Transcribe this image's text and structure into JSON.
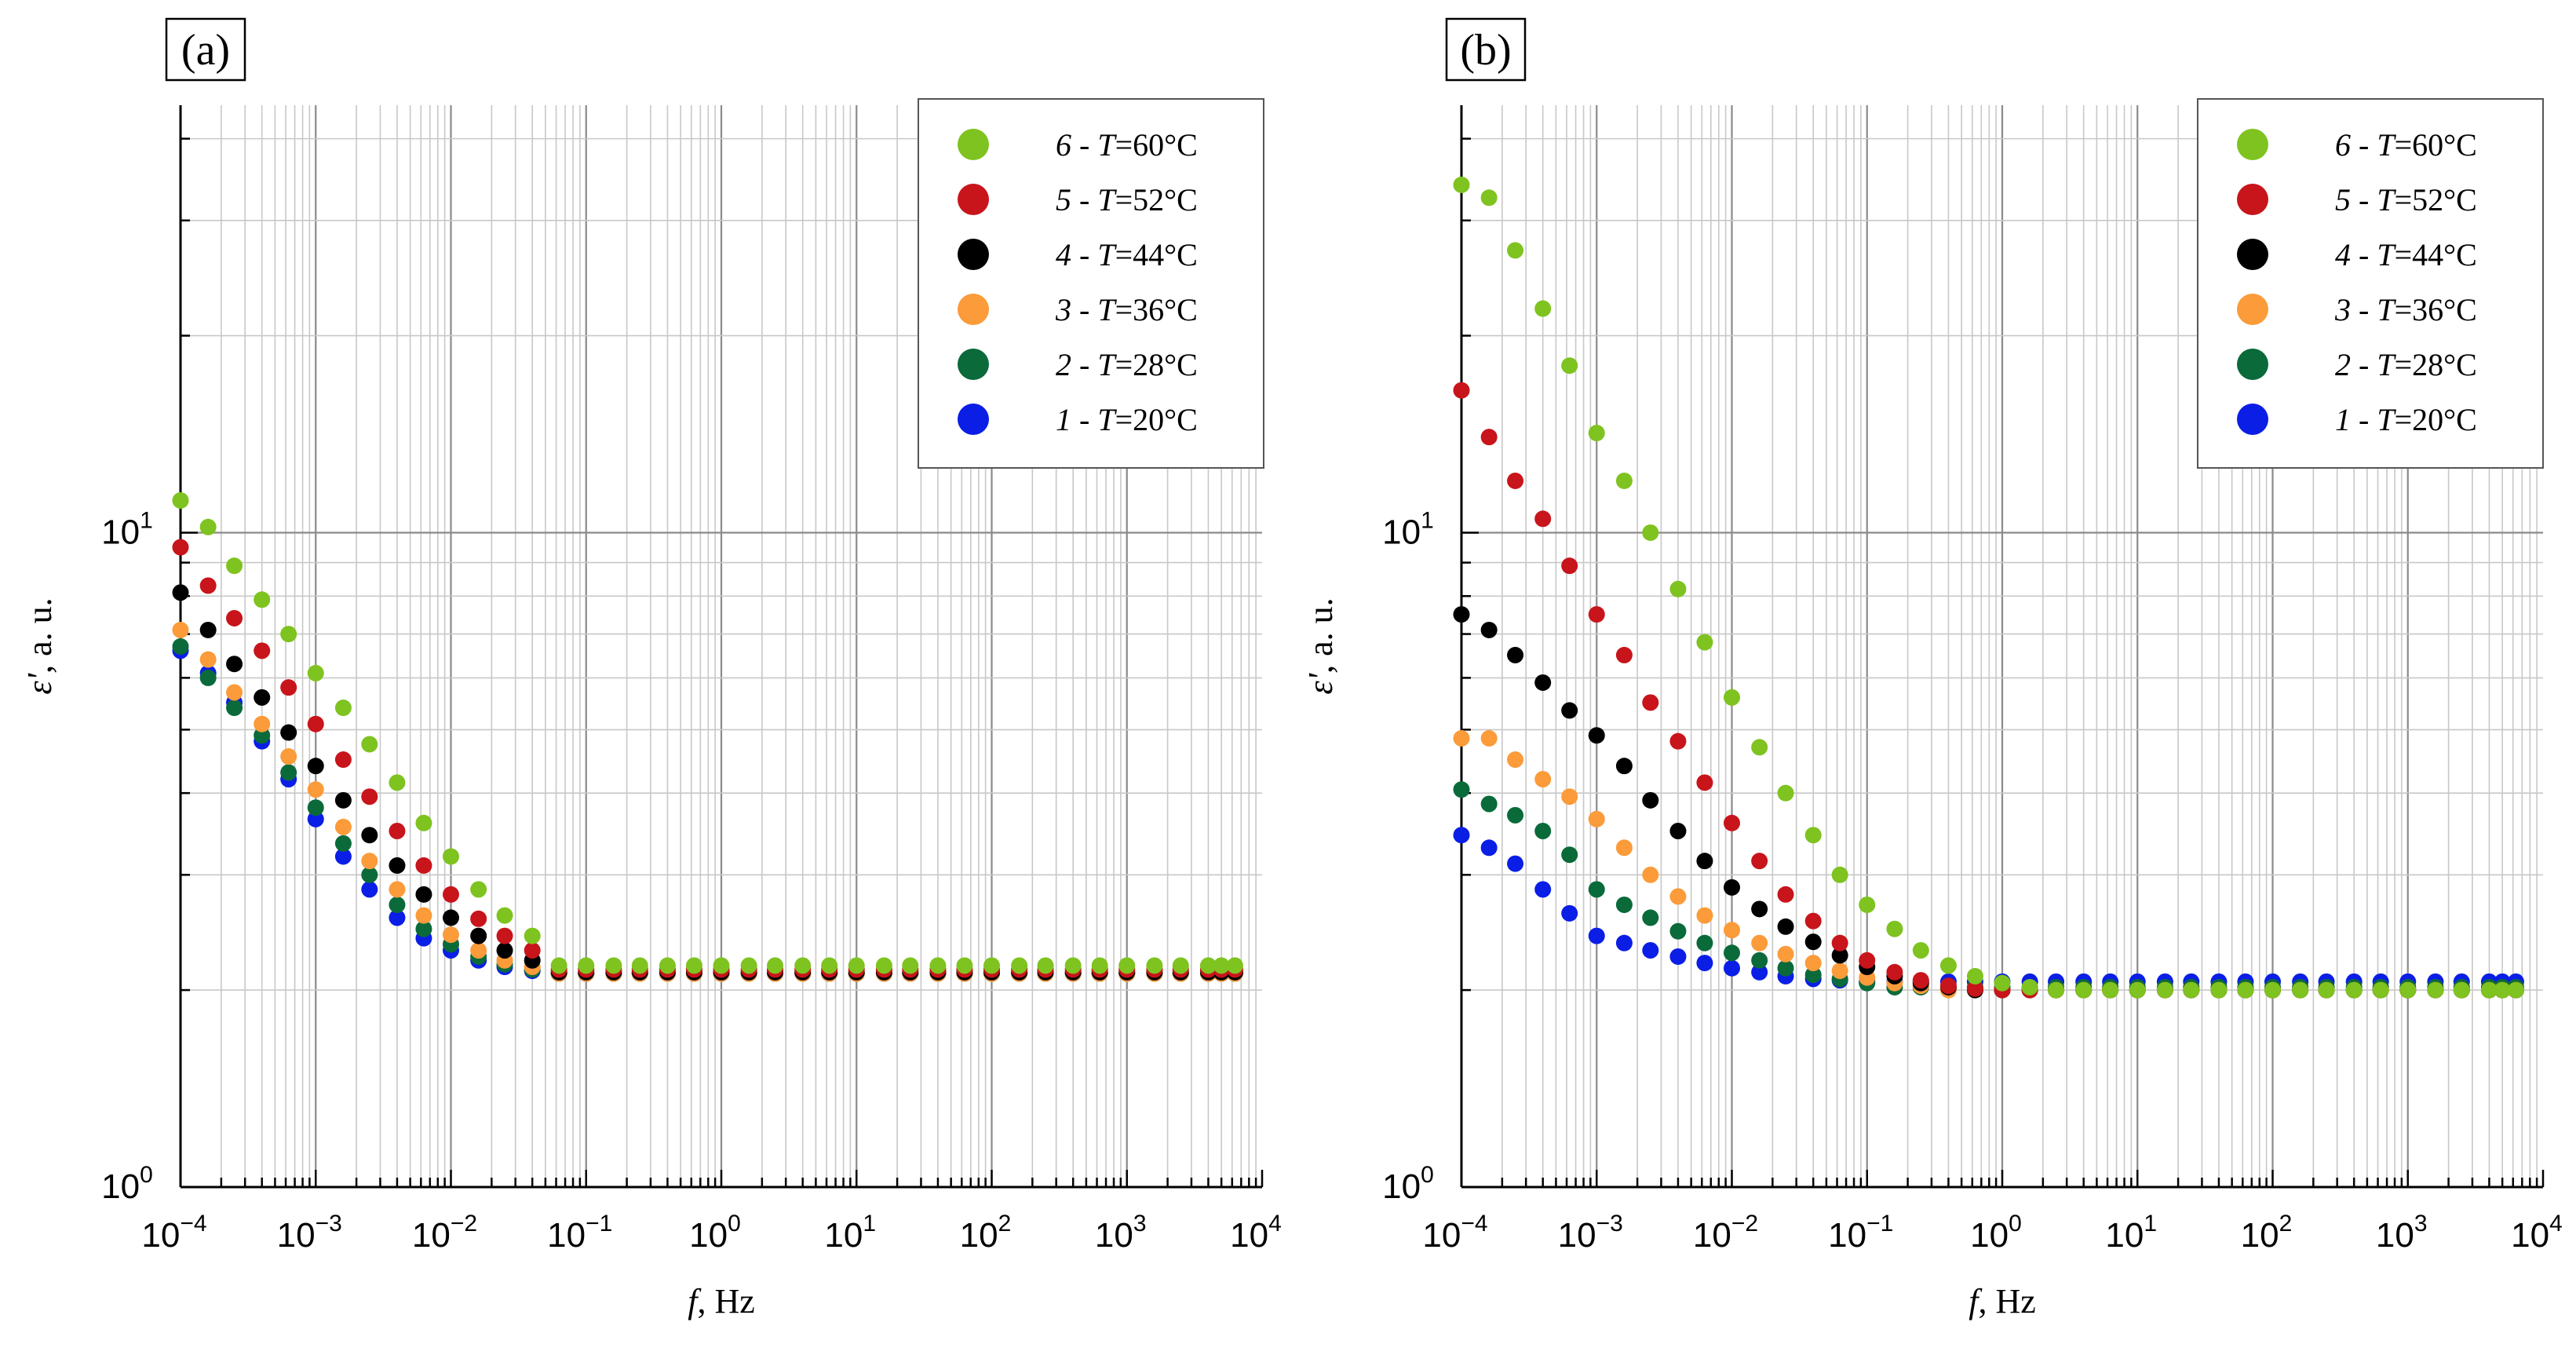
{
  "chart_data": [
    {
      "type": "scatter",
      "panel_label": "(a)",
      "xlabel_var": "f",
      "xlabel_unit": ", Hz",
      "ylabel_var": "ε'",
      "ylabel_unit": ", a. u.",
      "xscale": "log",
      "yscale": "log",
      "xlim": [
        0.0001,
        10000
      ],
      "ylim": [
        1,
        45
      ],
      "x_ticks": [
        {
          "base": "10",
          "exp": "−4"
        },
        {
          "base": "10",
          "exp": "−3"
        },
        {
          "base": "10",
          "exp": "−2"
        },
        {
          "base": "10",
          "exp": "−1"
        },
        {
          "base": "10",
          "exp": "0"
        },
        {
          "base": "10",
          "exp": "1"
        },
        {
          "base": "10",
          "exp": "2"
        },
        {
          "base": "10",
          "exp": "3"
        },
        {
          "base": "10",
          "exp": "4"
        }
      ],
      "y_ticks": [
        {
          "base": "10",
          "exp": "0"
        },
        {
          "base": "10",
          "exp": "1"
        }
      ],
      "grid": true,
      "legend_position": "top-right",
      "legend": [
        {
          "num": "6",
          "sep": " - ",
          "var": "T",
          "val": "=60°C",
          "color": "#7ec31f"
        },
        {
          "num": "5",
          "sep": " - ",
          "var": "T",
          "val": "=52°C",
          "color": "#c8141b"
        },
        {
          "num": "4",
          "sep": " - ",
          "var": "T",
          "val": "=44°C",
          "color": "#000000"
        },
        {
          "num": "3",
          "sep": " - ",
          "var": "T",
          "val": "=36°C",
          "color": "#fb9b3a"
        },
        {
          "num": "2",
          "sep": " - ",
          "var": "T",
          "val": "=28°C",
          "color": "#0a6a3a"
        },
        {
          "num": "1",
          "sep": " - ",
          "var": "T",
          "val": "=20°C",
          "color": "#0a1ee6"
        }
      ],
      "series": [
        {
          "name": "1 - T=20°C",
          "color": "#0a1ee6",
          "plateau": 2.12,
          "points": [
            [
              0.0001,
              6.6
            ],
            [
              0.00016,
              6.1
            ],
            [
              0.00025,
              5.5
            ],
            [
              0.0004,
              4.8
            ],
            [
              0.00063,
              4.2
            ],
            [
              0.001,
              3.65
            ],
            [
              0.0016,
              3.2
            ],
            [
              0.0025,
              2.85
            ],
            [
              0.004,
              2.58
            ],
            [
              0.0063,
              2.4
            ],
            [
              0.01,
              2.3
            ],
            [
              0.016,
              2.22
            ],
            [
              0.025,
              2.17
            ],
            [
              0.04,
              2.14
            ]
          ]
        },
        {
          "name": "2 - T=28°C",
          "color": "#0a6a3a",
          "plateau": 2.12,
          "points": [
            [
              0.0001,
              6.7
            ],
            [
              0.00016,
              6.0
            ],
            [
              0.00025,
              5.4
            ],
            [
              0.0004,
              4.9
            ],
            [
              0.00063,
              4.3
            ],
            [
              0.001,
              3.8
            ],
            [
              0.0016,
              3.35
            ],
            [
              0.0025,
              3.0
            ],
            [
              0.004,
              2.7
            ],
            [
              0.0063,
              2.48
            ],
            [
              0.01,
              2.35
            ],
            [
              0.016,
              2.25
            ],
            [
              0.025,
              2.19
            ],
            [
              0.04,
              2.15
            ]
          ]
        },
        {
          "name": "3 - T=36°C",
          "color": "#fb9b3a",
          "plateau": 2.12,
          "points": [
            [
              0.0001,
              7.1
            ],
            [
              0.00016,
              6.4
            ],
            [
              0.00025,
              5.7
            ],
            [
              0.0004,
              5.1
            ],
            [
              0.00063,
              4.55
            ],
            [
              0.001,
              4.05
            ],
            [
              0.0016,
              3.55
            ],
            [
              0.0025,
              3.15
            ],
            [
              0.004,
              2.85
            ],
            [
              0.0063,
              2.6
            ],
            [
              0.01,
              2.43
            ],
            [
              0.016,
              2.3
            ],
            [
              0.025,
              2.22
            ],
            [
              0.04,
              2.17
            ]
          ]
        },
        {
          "name": "4 - T=44°C",
          "color": "#000000",
          "plateau": 2.13,
          "points": [
            [
              0.0001,
              8.1
            ],
            [
              0.00016,
              7.1
            ],
            [
              0.00025,
              6.3
            ],
            [
              0.0004,
              5.6
            ],
            [
              0.00063,
              4.95
            ],
            [
              0.001,
              4.4
            ],
            [
              0.0016,
              3.9
            ],
            [
              0.0025,
              3.45
            ],
            [
              0.004,
              3.1
            ],
            [
              0.0063,
              2.8
            ],
            [
              0.01,
              2.58
            ],
            [
              0.016,
              2.42
            ],
            [
              0.025,
              2.3
            ],
            [
              0.04,
              2.22
            ]
          ]
        },
        {
          "name": "5 - T=52°C",
          "color": "#c8141b",
          "plateau": 2.15,
          "points": [
            [
              0.0001,
              9.5
            ],
            [
              0.00016,
              8.3
            ],
            [
              0.00025,
              7.4
            ],
            [
              0.0004,
              6.6
            ],
            [
              0.00063,
              5.8
            ],
            [
              0.001,
              5.1
            ],
            [
              0.0016,
              4.5
            ],
            [
              0.0025,
              3.95
            ],
            [
              0.004,
              3.5
            ],
            [
              0.0063,
              3.1
            ],
            [
              0.01,
              2.8
            ],
            [
              0.016,
              2.57
            ],
            [
              0.025,
              2.42
            ],
            [
              0.04,
              2.3
            ]
          ]
        },
        {
          "name": "6 - T=60°C",
          "color": "#7ec31f",
          "plateau": 2.18,
          "points": [
            [
              0.0001,
              11.2
            ],
            [
              0.00016,
              10.2
            ],
            [
              0.00025,
              8.9
            ],
            [
              0.0004,
              7.9
            ],
            [
              0.00063,
              7.0
            ],
            [
              0.001,
              6.1
            ],
            [
              0.0016,
              5.4
            ],
            [
              0.0025,
              4.75
            ],
            [
              0.004,
              4.15
            ],
            [
              0.0063,
              3.6
            ],
            [
              0.01,
              3.2
            ],
            [
              0.016,
              2.85
            ],
            [
              0.025,
              2.6
            ],
            [
              0.04,
              2.42
            ]
          ]
        }
      ]
    },
    {
      "type": "scatter",
      "panel_label": "(b)",
      "xlabel_var": "f",
      "xlabel_unit": ", Hz",
      "ylabel_var": "ε'",
      "ylabel_unit": ", a. u.",
      "xscale": "log",
      "yscale": "log",
      "xlim": [
        0.0001,
        10000
      ],
      "ylim": [
        1,
        45
      ],
      "x_ticks": [
        {
          "base": "10",
          "exp": "−4"
        },
        {
          "base": "10",
          "exp": "−3"
        },
        {
          "base": "10",
          "exp": "−2"
        },
        {
          "base": "10",
          "exp": "−1"
        },
        {
          "base": "10",
          "exp": "0"
        },
        {
          "base": "10",
          "exp": "1"
        },
        {
          "base": "10",
          "exp": "2"
        },
        {
          "base": "10",
          "exp": "3"
        },
        {
          "base": "10",
          "exp": "4"
        }
      ],
      "y_ticks": [
        {
          "base": "10",
          "exp": "0"
        },
        {
          "base": "10",
          "exp": "1"
        }
      ],
      "grid": true,
      "legend_position": "top-right",
      "legend": [
        {
          "num": "6",
          "sep": " - ",
          "var": "T",
          "val": "=60°C",
          "color": "#7ec31f"
        },
        {
          "num": "5",
          "sep": " - ",
          "var": "T",
          "val": "=52°C",
          "color": "#c8141b"
        },
        {
          "num": "4",
          "sep": " - ",
          "var": "T",
          "val": "=44°C",
          "color": "#000000"
        },
        {
          "num": "3",
          "sep": " - ",
          "var": "T",
          "val": "=36°C",
          "color": "#fb9b3a"
        },
        {
          "num": "2",
          "sep": " - ",
          "var": "T",
          "val": "=28°C",
          "color": "#0a6a3a"
        },
        {
          "num": "1",
          "sep": " - ",
          "var": "T",
          "val": "=20°C",
          "color": "#0a1ee6"
        }
      ],
      "series": [
        {
          "name": "1 - T=20°C",
          "color": "#0a1ee6",
          "plateau": 2.06,
          "points": [
            [
              0.0001,
              3.45
            ],
            [
              0.00016,
              3.3
            ],
            [
              0.00025,
              3.12
            ],
            [
              0.0004,
              2.85
            ],
            [
              0.00063,
              2.62
            ],
            [
              0.001,
              2.42
            ],
            [
              0.0016,
              2.36
            ],
            [
              0.0025,
              2.3
            ],
            [
              0.004,
              2.25
            ],
            [
              0.0063,
              2.2
            ],
            [
              0.01,
              2.16
            ],
            [
              0.016,
              2.13
            ],
            [
              0.025,
              2.1
            ],
            [
              0.04,
              2.08
            ],
            [
              0.063,
              2.07
            ]
          ]
        },
        {
          "name": "2 - T=28°C",
          "color": "#0a6a3a",
          "plateau": 2.02,
          "points": [
            [
              0.0001,
              4.05
            ],
            [
              0.00016,
              3.85
            ],
            [
              0.00025,
              3.7
            ],
            [
              0.0004,
              3.5
            ],
            [
              0.00063,
              3.22
            ],
            [
              0.001,
              2.85
            ],
            [
              0.0016,
              2.7
            ],
            [
              0.0025,
              2.58
            ],
            [
              0.004,
              2.46
            ],
            [
              0.0063,
              2.36
            ],
            [
              0.01,
              2.28
            ],
            [
              0.016,
              2.22
            ],
            [
              0.025,
              2.16
            ],
            [
              0.04,
              2.11
            ],
            [
              0.063,
              2.08
            ],
            [
              0.1,
              2.05
            ]
          ]
        },
        {
          "name": "3 - T=36°C",
          "color": "#fb9b3a",
          "plateau": 2.0,
          "points": [
            [
              0.0001,
              4.85
            ],
            [
              0.00016,
              4.85
            ],
            [
              0.00025,
              4.5
            ],
            [
              0.0004,
              4.2
            ],
            [
              0.00063,
              3.95
            ],
            [
              0.001,
              3.65
            ],
            [
              0.0016,
              3.3
            ],
            [
              0.0025,
              3.0
            ],
            [
              0.004,
              2.78
            ],
            [
              0.0063,
              2.6
            ],
            [
              0.01,
              2.47
            ],
            [
              0.016,
              2.36
            ],
            [
              0.025,
              2.27
            ],
            [
              0.04,
              2.2
            ],
            [
              0.063,
              2.14
            ],
            [
              0.1,
              2.09
            ],
            [
              0.16,
              2.05
            ],
            [
              0.25,
              2.03
            ]
          ]
        },
        {
          "name": "4 - T=44°C",
          "color": "#000000",
          "plateau": 2.0,
          "points": [
            [
              0.0001,
              7.5
            ],
            [
              0.00016,
              7.1
            ],
            [
              0.00025,
              6.5
            ],
            [
              0.0004,
              5.9
            ],
            [
              0.00063,
              5.35
            ],
            [
              0.001,
              4.9
            ],
            [
              0.0016,
              4.4
            ],
            [
              0.0025,
              3.9
            ],
            [
              0.004,
              3.5
            ],
            [
              0.0063,
              3.15
            ],
            [
              0.01,
              2.87
            ],
            [
              0.016,
              2.66
            ],
            [
              0.025,
              2.5
            ],
            [
              0.04,
              2.37
            ],
            [
              0.063,
              2.26
            ],
            [
              0.1,
              2.17
            ],
            [
              0.16,
              2.1
            ],
            [
              0.25,
              2.05
            ],
            [
              0.4,
              2.02
            ]
          ]
        },
        {
          "name": "5 - T=52°C",
          "color": "#c8141b",
          "plateau": 2.0,
          "points": [
            [
              0.0001,
              16.5
            ],
            [
              0.00016,
              14.0
            ],
            [
              0.00025,
              12.0
            ],
            [
              0.0004,
              10.5
            ],
            [
              0.00063,
              8.9
            ],
            [
              0.001,
              7.5
            ],
            [
              0.0016,
              6.5
            ],
            [
              0.0025,
              5.5
            ],
            [
              0.004,
              4.8
            ],
            [
              0.0063,
              4.15
            ],
            [
              0.01,
              3.6
            ],
            [
              0.016,
              3.15
            ],
            [
              0.025,
              2.8
            ],
            [
              0.04,
              2.55
            ],
            [
              0.063,
              2.36
            ],
            [
              0.1,
              2.22
            ],
            [
              0.16,
              2.13
            ],
            [
              0.25,
              2.07
            ],
            [
              0.4,
              2.03
            ],
            [
              0.63,
              2.01
            ]
          ]
        },
        {
          "name": "6 - T=60°C",
          "color": "#7ec31f",
          "plateau": 2.0,
          "points": [
            [
              0.0001,
              34.0
            ],
            [
              0.00016,
              32.5
            ],
            [
              0.00025,
              27.0
            ],
            [
              0.0004,
              22.0
            ],
            [
              0.00063,
              18.0
            ],
            [
              0.001,
              14.2
            ],
            [
              0.0016,
              12.0
            ],
            [
              0.0025,
              10.0
            ],
            [
              0.004,
              8.2
            ],
            [
              0.0063,
              6.8
            ],
            [
              0.01,
              5.6
            ],
            [
              0.016,
              4.7
            ],
            [
              0.025,
              4.0
            ],
            [
              0.04,
              3.45
            ],
            [
              0.063,
              3.0
            ],
            [
              0.1,
              2.7
            ],
            [
              0.16,
              2.48
            ],
            [
              0.25,
              2.3
            ],
            [
              0.4,
              2.18
            ],
            [
              0.63,
              2.1
            ],
            [
              1.0,
              2.05
            ],
            [
              1.6,
              2.02
            ]
          ]
        }
      ]
    }
  ]
}
